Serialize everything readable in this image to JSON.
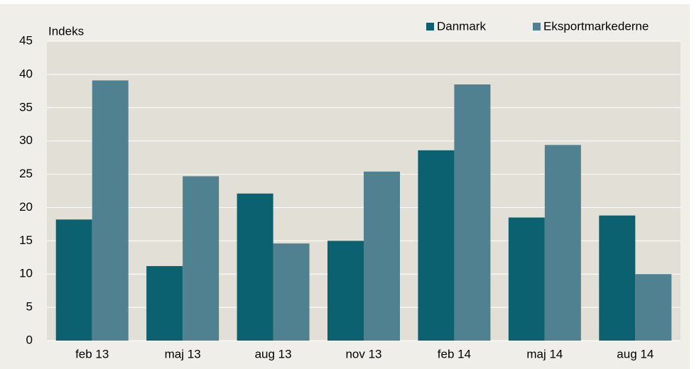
{
  "chart_data": {
    "type": "bar",
    "y_label": "Indeks",
    "categories": [
      "feb 13",
      "maj 13",
      "aug 13",
      "nov 13",
      "feb 14",
      "maj 14",
      "aug 14"
    ],
    "series": [
      {
        "name": "Danmark",
        "color": "#0b6170",
        "values": [
          18.2,
          11.2,
          22.1,
          15.0,
          28.6,
          18.5,
          18.8
        ]
      },
      {
        "name": "Eksportmarkederne",
        "color": "#4f8191",
        "values": [
          39.1,
          24.7,
          14.6,
          25.4,
          38.5,
          29.4,
          10.0
        ]
      }
    ],
    "ylim": [
      0,
      45
    ],
    "yticks": [
      0,
      5,
      10,
      15,
      20,
      25,
      30,
      35,
      40,
      45
    ],
    "grid": true,
    "legend": "top-right"
  }
}
